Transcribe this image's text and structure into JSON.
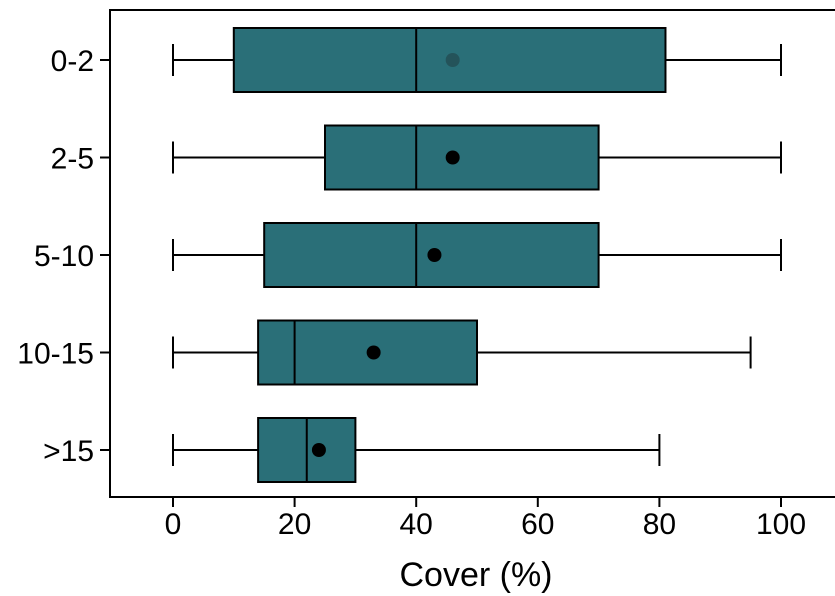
{
  "chart_data": {
    "type": "boxplot",
    "orientation": "horizontal",
    "title": "",
    "xlabel": "Cover (%)",
    "ylabel": "",
    "xlim": [
      -10,
      108
    ],
    "xticks": [
      0,
      20,
      40,
      60,
      80,
      100
    ],
    "grid": false,
    "legend": "none",
    "colors": {
      "box_fill": "#2A6F78",
      "box_edge": "#000000",
      "mean_marker": "#000000",
      "first_mean_marker": "#24535A"
    },
    "categories": [
      "0-2",
      "2-5",
      "5-10",
      "10-15",
      ">15"
    ],
    "boxes": [
      {
        "category": "0-2",
        "whisker_low": 0,
        "q1": 10,
        "median": 40,
        "q3": 81,
        "whisker_high": 100,
        "mean": 46
      },
      {
        "category": "2-5",
        "whisker_low": 0,
        "q1": 25,
        "median": 40,
        "q3": 70,
        "whisker_high": 100,
        "mean": 46
      },
      {
        "category": "5-10",
        "whisker_low": 0,
        "q1": 15,
        "median": 40,
        "q3": 70,
        "whisker_high": 100,
        "mean": 43
      },
      {
        "category": "10-15",
        "whisker_low": 0,
        "q1": 14,
        "median": 20,
        "q3": 50,
        "whisker_high": 95,
        "mean": 33
      },
      {
        "category": ">15",
        "whisker_low": 0,
        "q1": 14,
        "median": 22,
        "q3": 30,
        "whisker_high": 80,
        "mean": 24
      }
    ]
  }
}
